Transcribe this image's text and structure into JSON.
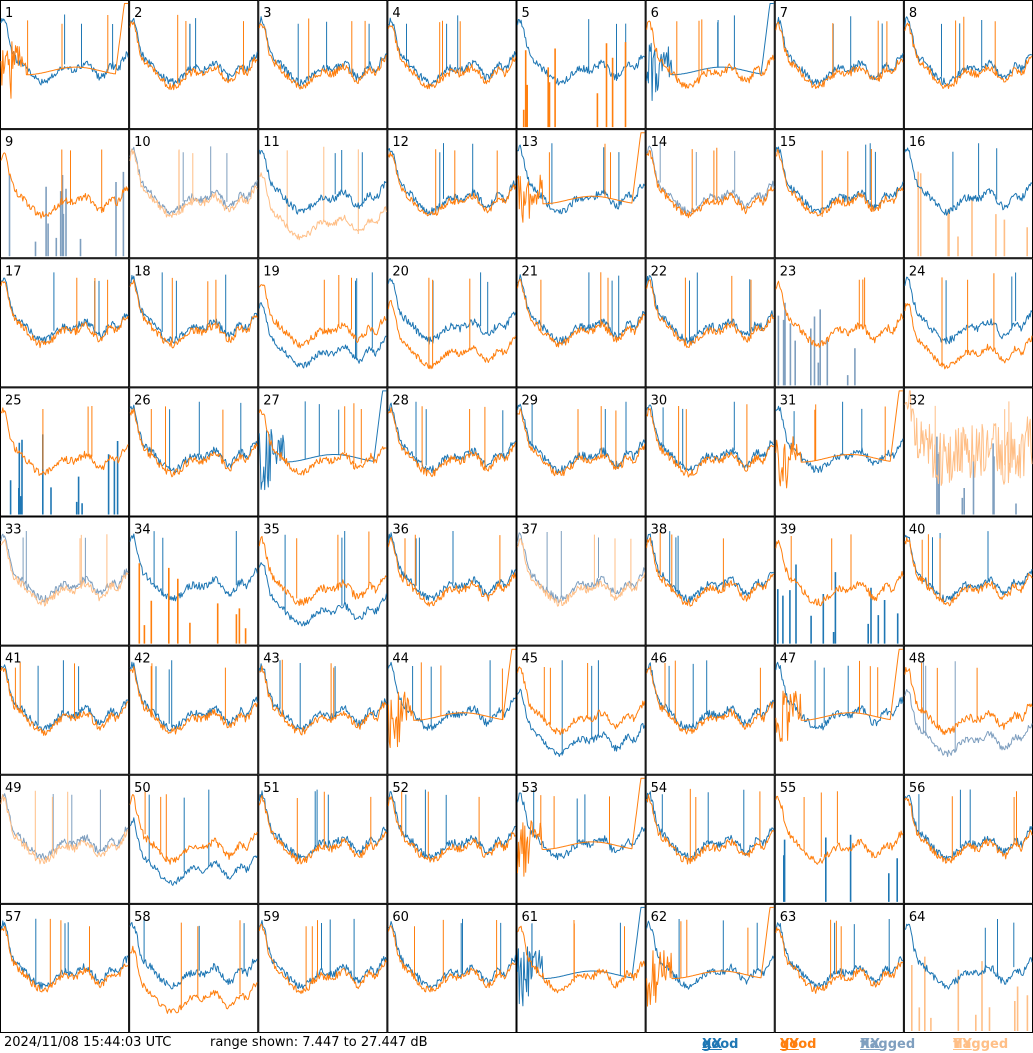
{
  "footer": {
    "timestamp": "2024/11/08 15:44:03 UTC",
    "range_text": "range shown: 7.447 to 27.447 dB"
  },
  "legend": [
    {
      "prefix": "good ",
      "pol": "XX",
      "color": "#1f77b4"
    },
    {
      "prefix": "good ",
      "pol": "YY",
      "color": "#ff7f0e"
    },
    {
      "prefix": "flagged ",
      "pol": "XX",
      "color": "#7f9fbf"
    },
    {
      "prefix": "flagged ",
      "pol": "YY",
      "color": "#ffbf87"
    }
  ],
  "chart_data": {
    "type": "line",
    "layout": {
      "rows": 8,
      "cols": 8
    },
    "ylim": [
      7.447,
      27.447
    ],
    "y_unit": "dB",
    "series_colors": {
      "good_xx": "#1f77b4",
      "good_yy": "#ff7f0e",
      "flagged_xx": "#7f9fbf",
      "flagged_yy": "#ffbf87"
    },
    "panels": [
      {
        "label": "1",
        "xx": "good",
        "yy": "good",
        "xx_shape": "normal",
        "yy_shape": "rolloff"
      },
      {
        "label": "2",
        "xx": "good",
        "yy": "good",
        "xx_shape": "normal",
        "yy_shape": "normal"
      },
      {
        "label": "3",
        "xx": "good",
        "yy": "good",
        "xx_shape": "normal",
        "yy_shape": "normal"
      },
      {
        "label": "4",
        "xx": "good",
        "yy": "good",
        "xx_shape": "normal",
        "yy_shape": "normal"
      },
      {
        "label": "5",
        "xx": "good",
        "yy": "good",
        "xx_shape": "normal",
        "yy_shape": "spikes"
      },
      {
        "label": "6",
        "xx": "good",
        "yy": "good",
        "xx_shape": "rolloff",
        "yy_shape": "normal"
      },
      {
        "label": "7",
        "xx": "good",
        "yy": "good",
        "xx_shape": "normal",
        "yy_shape": "normal"
      },
      {
        "label": "8",
        "xx": "good",
        "yy": "good",
        "xx_shape": "normal",
        "yy_shape": "normal"
      },
      {
        "label": "9",
        "xx": "flagged",
        "yy": "good",
        "xx_shape": "spikes",
        "yy_shape": "normal"
      },
      {
        "label": "10",
        "xx": "flagged",
        "yy": "flagged",
        "xx_shape": "normal",
        "yy_shape": "normal"
      },
      {
        "label": "11",
        "xx": "good",
        "yy": "flagged",
        "xx_shape": "normal",
        "yy_shape": "low"
      },
      {
        "label": "12",
        "xx": "good",
        "yy": "good",
        "xx_shape": "normal",
        "yy_shape": "normal"
      },
      {
        "label": "13",
        "xx": "good",
        "yy": "good",
        "xx_shape": "normal",
        "yy_shape": "rolloff"
      },
      {
        "label": "14",
        "xx": "flagged",
        "yy": "good",
        "xx_shape": "normal",
        "yy_shape": "normal"
      },
      {
        "label": "15",
        "xx": "good",
        "yy": "good",
        "xx_shape": "normal",
        "yy_shape": "normal"
      },
      {
        "label": "16",
        "xx": "good",
        "yy": "flagged",
        "xx_shape": "normal",
        "yy_shape": "spikes"
      },
      {
        "label": "17",
        "xx": "good",
        "yy": "good",
        "xx_shape": "normal",
        "yy_shape": "normal"
      },
      {
        "label": "18",
        "xx": "good",
        "yy": "good",
        "xx_shape": "normal",
        "yy_shape": "normal"
      },
      {
        "label": "19",
        "xx": "good",
        "yy": "good",
        "xx_shape": "low",
        "yy_shape": "normal"
      },
      {
        "label": "20",
        "xx": "good",
        "yy": "good",
        "xx_shape": "normal",
        "yy_shape": "low"
      },
      {
        "label": "21",
        "xx": "good",
        "yy": "good",
        "xx_shape": "normal",
        "yy_shape": "normal"
      },
      {
        "label": "22",
        "xx": "good",
        "yy": "good",
        "xx_shape": "normal",
        "yy_shape": "normal"
      },
      {
        "label": "23",
        "xx": "flagged",
        "yy": "good",
        "xx_shape": "spikes",
        "yy_shape": "normal"
      },
      {
        "label": "24",
        "xx": "good",
        "yy": "good",
        "xx_shape": "normal",
        "yy_shape": "low"
      },
      {
        "label": "25",
        "xx": "good",
        "yy": "good",
        "xx_shape": "spikes",
        "yy_shape": "normal"
      },
      {
        "label": "26",
        "xx": "good",
        "yy": "good",
        "xx_shape": "normal",
        "yy_shape": "normal"
      },
      {
        "label": "27",
        "xx": "good",
        "yy": "good",
        "xx_shape": "rolloff",
        "yy_shape": "normal"
      },
      {
        "label": "28",
        "xx": "good",
        "yy": "good",
        "xx_shape": "normal",
        "yy_shape": "normal"
      },
      {
        "label": "29",
        "xx": "good",
        "yy": "good",
        "xx_shape": "normal",
        "yy_shape": "normal"
      },
      {
        "label": "30",
        "xx": "good",
        "yy": "good",
        "xx_shape": "normal",
        "yy_shape": "normal"
      },
      {
        "label": "31",
        "xx": "good",
        "yy": "good",
        "xx_shape": "normal",
        "yy_shape": "rolloff"
      },
      {
        "label": "32",
        "xx": "flagged",
        "yy": "flagged",
        "xx_shape": "spikes",
        "yy_shape": "noisy"
      },
      {
        "label": "33",
        "xx": "flagged",
        "yy": "flagged",
        "xx_shape": "normal",
        "yy_shape": "normal"
      },
      {
        "label": "34",
        "xx": "good",
        "yy": "good",
        "xx_shape": "normal",
        "yy_shape": "spikes"
      },
      {
        "label": "35",
        "xx": "good",
        "yy": "good",
        "xx_shape": "low",
        "yy_shape": "normal"
      },
      {
        "label": "36",
        "xx": "good",
        "yy": "good",
        "xx_shape": "normal",
        "yy_shape": "normal"
      },
      {
        "label": "37",
        "xx": "flagged",
        "yy": "flagged",
        "xx_shape": "normal",
        "yy_shape": "normal"
      },
      {
        "label": "38",
        "xx": "good",
        "yy": "good",
        "xx_shape": "normal",
        "yy_shape": "normal"
      },
      {
        "label": "39",
        "xx": "good",
        "yy": "good",
        "xx_shape": "spikes",
        "yy_shape": "normal"
      },
      {
        "label": "40",
        "xx": "good",
        "yy": "good",
        "xx_shape": "normal",
        "yy_shape": "normal"
      },
      {
        "label": "41",
        "xx": "good",
        "yy": "good",
        "xx_shape": "normal",
        "yy_shape": "normal"
      },
      {
        "label": "42",
        "xx": "good",
        "yy": "good",
        "xx_shape": "normal",
        "yy_shape": "normal"
      },
      {
        "label": "43",
        "xx": "good",
        "yy": "good",
        "xx_shape": "normal",
        "yy_shape": "normal"
      },
      {
        "label": "44",
        "xx": "good",
        "yy": "good",
        "xx_shape": "normal",
        "yy_shape": "rolloff"
      },
      {
        "label": "45",
        "xx": "good",
        "yy": "good",
        "xx_shape": "low",
        "yy_shape": "normal"
      },
      {
        "label": "46",
        "xx": "good",
        "yy": "good",
        "xx_shape": "normal",
        "yy_shape": "normal"
      },
      {
        "label": "47",
        "xx": "good",
        "yy": "good",
        "xx_shape": "normal",
        "yy_shape": "rolloff"
      },
      {
        "label": "48",
        "xx": "flagged",
        "yy": "good",
        "xx_shape": "low",
        "yy_shape": "normal"
      },
      {
        "label": "49",
        "xx": "flagged",
        "yy": "flagged",
        "xx_shape": "normal",
        "yy_shape": "normal"
      },
      {
        "label": "50",
        "xx": "good",
        "yy": "good",
        "xx_shape": "low",
        "yy_shape": "normal"
      },
      {
        "label": "51",
        "xx": "good",
        "yy": "good",
        "xx_shape": "normal",
        "yy_shape": "normal"
      },
      {
        "label": "52",
        "xx": "good",
        "yy": "good",
        "xx_shape": "normal",
        "yy_shape": "normal"
      },
      {
        "label": "53",
        "xx": "good",
        "yy": "good",
        "xx_shape": "normal",
        "yy_shape": "rolloff"
      },
      {
        "label": "54",
        "xx": "good",
        "yy": "good",
        "xx_shape": "normal",
        "yy_shape": "normal"
      },
      {
        "label": "55",
        "xx": "good",
        "yy": "good",
        "xx_shape": "spikes",
        "yy_shape": "normal"
      },
      {
        "label": "56",
        "xx": "good",
        "yy": "good",
        "xx_shape": "normal",
        "yy_shape": "normal"
      },
      {
        "label": "57",
        "xx": "good",
        "yy": "good",
        "xx_shape": "normal",
        "yy_shape": "normal"
      },
      {
        "label": "58",
        "xx": "good",
        "yy": "good",
        "xx_shape": "normal",
        "yy_shape": "low"
      },
      {
        "label": "59",
        "xx": "good",
        "yy": "good",
        "xx_shape": "normal",
        "yy_shape": "normal"
      },
      {
        "label": "60",
        "xx": "good",
        "yy": "good",
        "xx_shape": "normal",
        "yy_shape": "normal"
      },
      {
        "label": "61",
        "xx": "good",
        "yy": "good",
        "xx_shape": "rolloff",
        "yy_shape": "normal"
      },
      {
        "label": "62",
        "xx": "good",
        "yy": "good",
        "xx_shape": "normal",
        "yy_shape": "rolloff"
      },
      {
        "label": "63",
        "xx": "good",
        "yy": "good",
        "xx_shape": "normal",
        "yy_shape": "normal"
      },
      {
        "label": "64",
        "xx": "good",
        "yy": "flagged",
        "xx_shape": "normal",
        "yy_shape": "spikes"
      }
    ]
  }
}
